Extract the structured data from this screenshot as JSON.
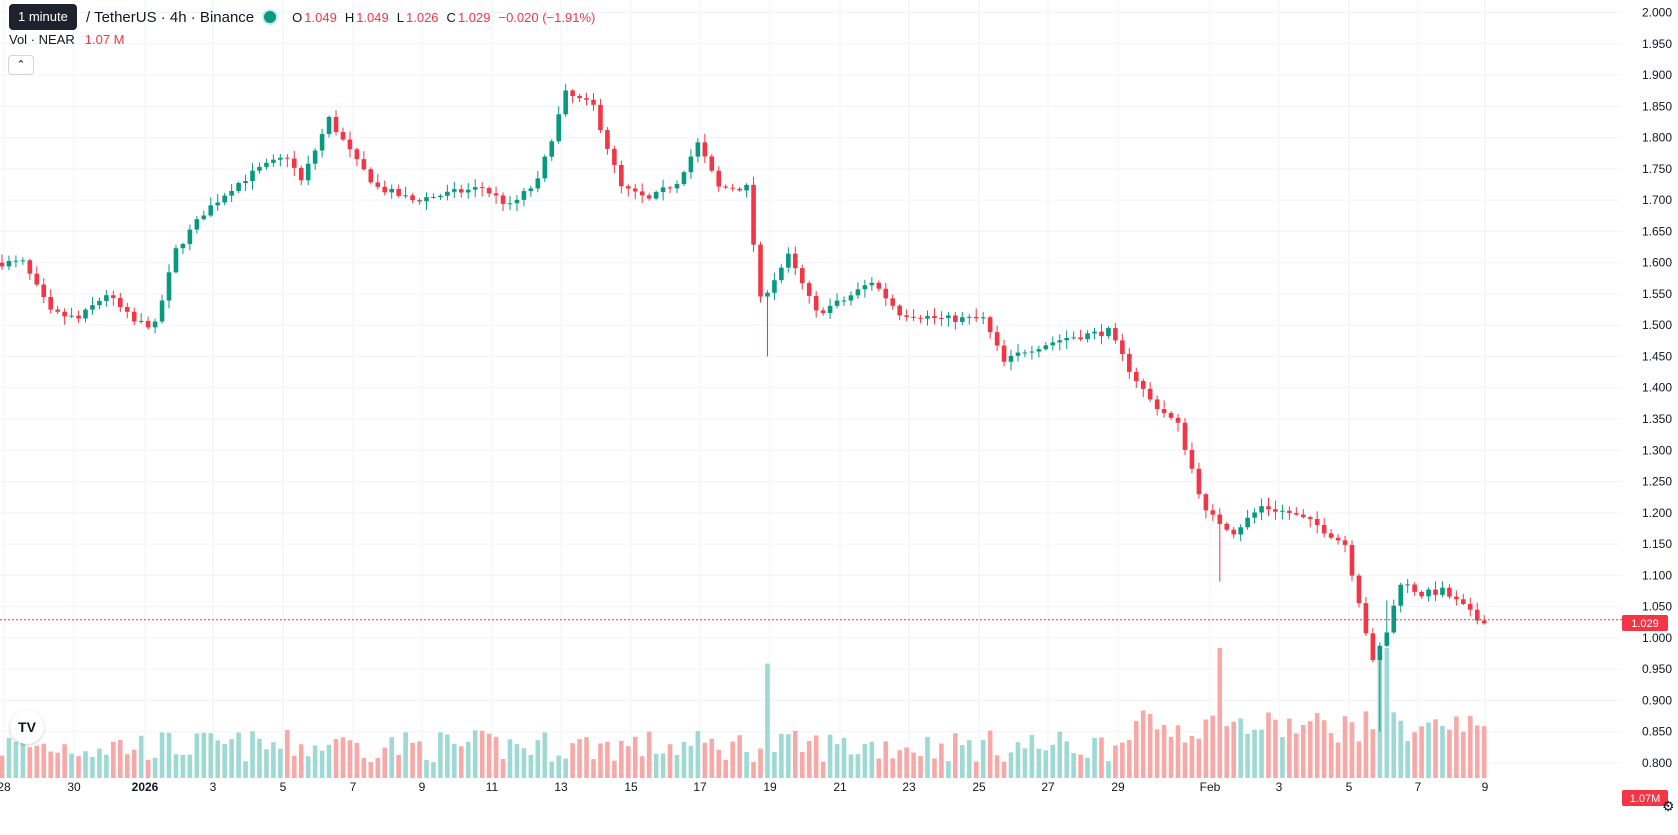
{
  "legend": {
    "symbol": "/ TetherUS · 4h · Binance",
    "o_label": "O",
    "o_value": "1.049",
    "h_label": "H",
    "h_value": "1.049",
    "l_label": "L",
    "l_value": "1.026",
    "c_label": "C",
    "c_value": "1.029",
    "change": "−0.020 (−1.91%)"
  },
  "tooltip": "1 minute",
  "volume": {
    "label": "Vol · NEAR",
    "value": "1.07 M"
  },
  "collapse_icon": "chevron-up-icon",
  "logo_icon": "tradingview-logo-icon",
  "settings_icon": "gear-icon",
  "colors": {
    "up": "#089981",
    "down": "#f23645",
    "grid": "#f0f3fa",
    "up_vol": "#9ed9d3",
    "down_vol": "#f7a9a7"
  },
  "chart_data": {
    "type": "candlestick",
    "price_axis": {
      "ticks": [
        "2.000",
        "1.950",
        "1.900",
        "1.850",
        "1.800",
        "1.750",
        "1.700",
        "1.650",
        "1.600",
        "1.550",
        "1.500",
        "1.450",
        "1.400",
        "1.350",
        "1.300",
        "1.250",
        "1.200",
        "1.150",
        "1.100",
        "1.050",
        "1.000",
        "0.950",
        "0.900",
        "0.850",
        "0.800"
      ],
      "range": [
        0.776,
        2.02
      ]
    },
    "time_axis": {
      "labels": [
        "28",
        "30",
        "2026",
        "3",
        "5",
        "7",
        "9",
        "11",
        "13",
        "15",
        "17",
        "19",
        "21",
        "23",
        "25",
        "27",
        "29",
        "Feb",
        "3",
        "5",
        "7",
        "9"
      ]
    },
    "last_price": "1.029",
    "last_volume": "1.07M",
    "price_path": [
      {
        "t": 0,
        "p": 1.6
      },
      {
        "t": 4,
        "p": 1.6
      },
      {
        "t": 8,
        "p": 1.52
      },
      {
        "t": 12,
        "p": 1.51
      },
      {
        "t": 16,
        "p": 1.55
      },
      {
        "t": 20,
        "p": 1.505
      },
      {
        "t": 23,
        "p": 1.5
      },
      {
        "t": 26,
        "p": 1.62
      },
      {
        "t": 30,
        "p": 1.68
      },
      {
        "t": 34,
        "p": 1.72
      },
      {
        "t": 38,
        "p": 1.75
      },
      {
        "t": 42,
        "p": 1.77
      },
      {
        "t": 44,
        "p": 1.73
      },
      {
        "t": 48,
        "p": 1.83
      },
      {
        "t": 52,
        "p": 1.76
      },
      {
        "t": 55,
        "p": 1.72
      },
      {
        "t": 60,
        "p": 1.7
      },
      {
        "t": 65,
        "p": 1.71
      },
      {
        "t": 70,
        "p": 1.72
      },
      {
        "t": 74,
        "p": 1.69
      },
      {
        "t": 78,
        "p": 1.73
      },
      {
        "t": 82,
        "p": 1.87
      },
      {
        "t": 86,
        "p": 1.85
      },
      {
        "t": 90,
        "p": 1.72
      },
      {
        "t": 94,
        "p": 1.7
      },
      {
        "t": 98,
        "p": 1.73
      },
      {
        "t": 101,
        "p": 1.79
      },
      {
        "t": 104,
        "p": 1.72
      },
      {
        "t": 108,
        "p": 1.72
      },
      {
        "t": 110,
        "p": 1.54
      },
      {
        "t": 114,
        "p": 1.61
      },
      {
        "t": 118,
        "p": 1.52
      },
      {
        "t": 122,
        "p": 1.54
      },
      {
        "t": 126,
        "p": 1.57
      },
      {
        "t": 130,
        "p": 1.52
      },
      {
        "t": 136,
        "p": 1.51
      },
      {
        "t": 142,
        "p": 1.51
      },
      {
        "t": 145,
        "p": 1.44
      },
      {
        "t": 148,
        "p": 1.46
      },
      {
        "t": 154,
        "p": 1.48
      },
      {
        "t": 160,
        "p": 1.49
      },
      {
        "t": 163,
        "p": 1.43
      },
      {
        "t": 166,
        "p": 1.38
      },
      {
        "t": 170,
        "p": 1.34
      },
      {
        "t": 174,
        "p": 1.2
      },
      {
        "t": 178,
        "p": 1.17
      },
      {
        "t": 182,
        "p": 1.21
      },
      {
        "t": 186,
        "p": 1.2
      },
      {
        "t": 190,
        "p": 1.18
      },
      {
        "t": 194,
        "p": 1.15
      },
      {
        "t": 196,
        "p": 1.06
      },
      {
        "t": 198,
        "p": 0.96
      },
      {
        "t": 200,
        "p": 1.01
      },
      {
        "t": 202,
        "p": 1.09
      },
      {
        "t": 205,
        "p": 1.07
      },
      {
        "t": 208,
        "p": 1.075
      },
      {
        "t": 211,
        "p": 1.05
      },
      {
        "t": 213,
        "p": 1.029
      }
    ],
    "candle_count": 214,
    "highlights": [
      {
        "i": 110,
        "low": 1.45,
        "vol": 0.88
      },
      {
        "i": 175,
        "low": 1.09,
        "vol": 1.0
      },
      {
        "i": 198,
        "low": 0.85,
        "vol": 1.0
      },
      {
        "i": 199,
        "high": 1.06,
        "vol": 1.0
      },
      {
        "i": 207,
        "vol": 0.4
      },
      {
        "i": 48,
        "vol": 0.3
      }
    ],
    "volume_max_label": "1.07M"
  }
}
